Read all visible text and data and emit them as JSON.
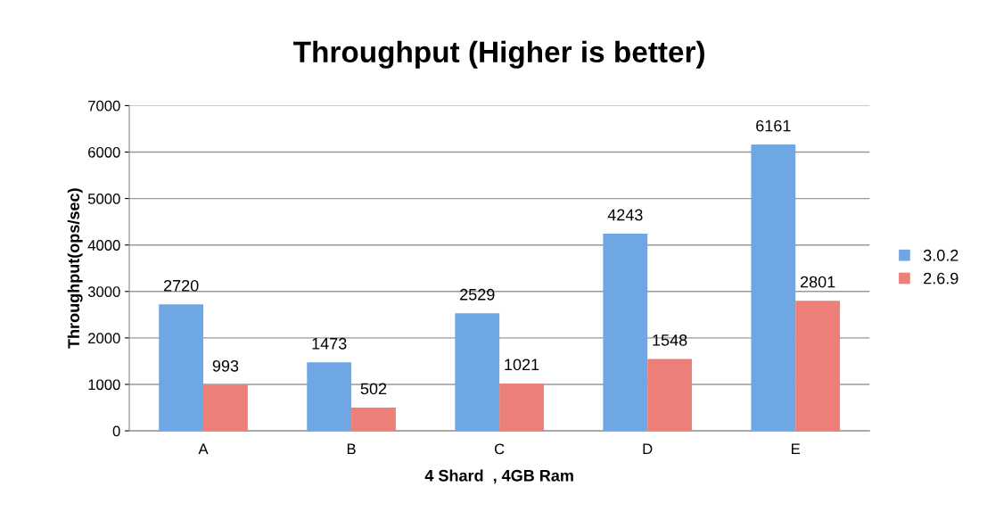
{
  "chart_data": {
    "type": "bar",
    "title": "Throughput (Higher is better)",
    "xlabel": "4 Shard  , 4GB Ram",
    "ylabel": "Throughput(ops/sec)",
    "categories": [
      "A",
      "B",
      "C",
      "D",
      "E"
    ],
    "series": [
      {
        "name": "3.0.2",
        "color": "#6fa6e4",
        "values": [
          2720,
          1473,
          2529,
          4243,
          6161
        ]
      },
      {
        "name": "2.6.9",
        "color": "#ec7f78",
        "values": [
          993,
          502,
          1021,
          1548,
          2801
        ]
      }
    ],
    "ylim": [
      0,
      7000
    ],
    "yticks": [
      0,
      1000,
      2000,
      3000,
      4000,
      5000,
      6000,
      7000
    ],
    "grid": "y",
    "legend": "right",
    "data_labels": true
  }
}
